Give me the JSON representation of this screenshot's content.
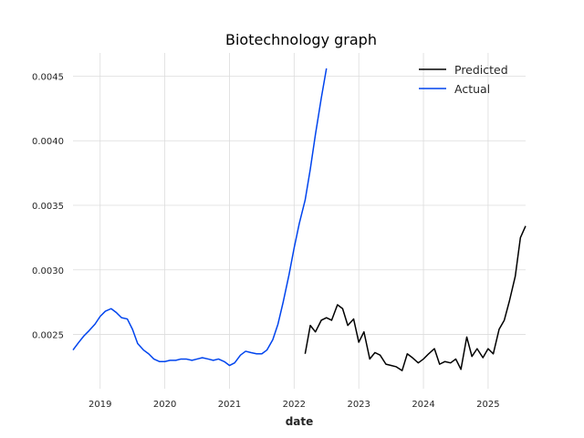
{
  "chart_data": {
    "type": "line",
    "title": "Biotechnology graph",
    "xlabel": "date",
    "ylabel": "",
    "xlim": [
      2018.58,
      2025.58
    ],
    "ylim": [
      0.00208,
      0.00468
    ],
    "x_ticks": [
      2019,
      2020,
      2021,
      2022,
      2023,
      2024,
      2025
    ],
    "x_tick_labels": [
      "2019",
      "2020",
      "2021",
      "2022",
      "2023",
      "2024",
      "2025"
    ],
    "y_ticks": [
      0.0025,
      0.003,
      0.0035,
      0.004,
      0.0045
    ],
    "y_tick_labels": [
      "0.0025",
      "0.0030",
      "0.0035",
      "0.0040",
      "0.0045"
    ],
    "grid": true,
    "legend_position": "top-right",
    "series": [
      {
        "name": "Actual",
        "color": "#0044ee",
        "x": [
          2018.58,
          2018.67,
          2018.75,
          2018.83,
          2018.92,
          2019.0,
          2019.08,
          2019.17,
          2019.25,
          2019.33,
          2019.42,
          2019.5,
          2019.58,
          2019.67,
          2019.75,
          2019.83,
          2019.92,
          2020.0,
          2020.08,
          2020.17,
          2020.25,
          2020.33,
          2020.42,
          2020.5,
          2020.58,
          2020.67,
          2020.75,
          2020.83,
          2020.92,
          2021.0,
          2021.08,
          2021.17,
          2021.25,
          2021.33,
          2021.42,
          2021.5,
          2021.58,
          2021.67,
          2021.75,
          2021.83,
          2021.92,
          2022.0,
          2022.08,
          2022.17,
          2022.25,
          2022.33,
          2022.42,
          2022.5
        ],
        "y": [
          0.00238,
          0.00244,
          0.00249,
          0.00253,
          0.00258,
          0.00264,
          0.00268,
          0.0027,
          0.00267,
          0.00263,
          0.00262,
          0.00254,
          0.00243,
          0.00238,
          0.00235,
          0.00231,
          0.00229,
          0.00229,
          0.0023,
          0.0023,
          0.00231,
          0.00231,
          0.0023,
          0.00231,
          0.00232,
          0.00231,
          0.0023,
          0.00231,
          0.00229,
          0.00226,
          0.00228,
          0.00234,
          0.00237,
          0.00236,
          0.00235,
          0.00235,
          0.00238,
          0.00246,
          0.00258,
          0.00275,
          0.00296,
          0.00317,
          0.00336,
          0.00354,
          0.00378,
          0.00405,
          0.00433,
          0.00456
        ]
      },
      {
        "name": "Predicted",
        "color": "#000000",
        "x": [
          2022.17,
          2022.25,
          2022.33,
          2022.42,
          2022.5,
          2022.58,
          2022.67,
          2022.75,
          2022.83,
          2022.92,
          2023.0,
          2023.08,
          2023.17,
          2023.25,
          2023.33,
          2023.42,
          2023.5,
          2023.58,
          2023.67,
          2023.75,
          2023.83,
          2023.92,
          2024.0,
          2024.08,
          2024.17,
          2024.25,
          2024.33,
          2024.42,
          2024.5,
          2024.58,
          2024.67,
          2024.75,
          2024.83,
          2024.92,
          2025.0,
          2025.08,
          2025.17,
          2025.25,
          2025.33,
          2025.42,
          2025.5,
          2025.58
        ],
        "y": [
          0.00235,
          0.00257,
          0.00252,
          0.00261,
          0.00263,
          0.00261,
          0.00273,
          0.0027,
          0.00257,
          0.00262,
          0.00244,
          0.00252,
          0.00231,
          0.00236,
          0.00234,
          0.00227,
          0.00226,
          0.00225,
          0.00222,
          0.00235,
          0.00232,
          0.00228,
          0.00231,
          0.00235,
          0.00239,
          0.00227,
          0.00229,
          0.00228,
          0.00231,
          0.00223,
          0.00248,
          0.00233,
          0.00239,
          0.00232,
          0.00239,
          0.00235,
          0.00254,
          0.00261,
          0.00276,
          0.00295,
          0.00325,
          0.00334
        ]
      }
    ],
    "legend": [
      {
        "name": "Predicted",
        "color": "#000000"
      },
      {
        "name": "Actual",
        "color": "#0044ee"
      }
    ]
  }
}
